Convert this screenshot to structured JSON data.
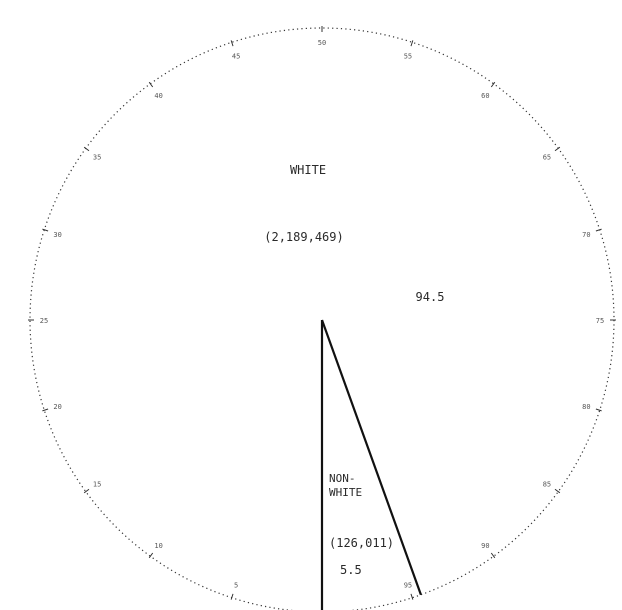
{
  "chart_data": {
    "type": "pie",
    "slices": [
      {
        "label": "WHITE",
        "count": "(2,189,469)",
        "percent": 94.5,
        "percent_label": "94.5"
      },
      {
        "label_lines": [
          "NON-",
          "WHITE"
        ],
        "count": "(126,011)",
        "percent": 5.5,
        "percent_label": "5.5"
      }
    ],
    "scale_ticks": [
      "5",
      "10",
      "15",
      "20",
      "25",
      "30",
      "35",
      "40",
      "45",
      "50",
      "55",
      "60",
      "65",
      "70",
      "75",
      "80",
      "85",
      "90",
      "95"
    ],
    "colors": {
      "ink": "#111111",
      "rim": "#333333"
    }
  }
}
